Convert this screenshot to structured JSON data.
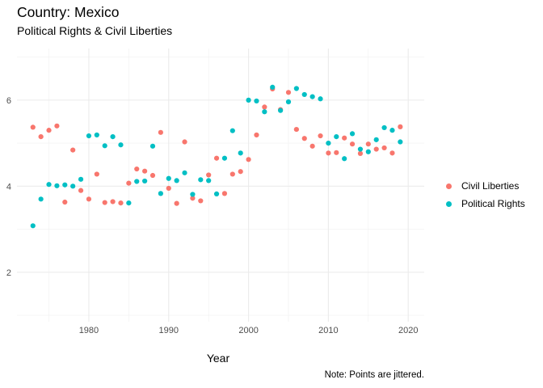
{
  "header": {
    "title": "Country: Mexico",
    "subtitle": "Political Rights & Civil Liberties",
    "caption": "Note: Points are jittered."
  },
  "legend": {
    "items": [
      {
        "label": "Civil Liberties",
        "color": "#F8766D"
      },
      {
        "label": "Political Rights",
        "color": "#00BFC4"
      }
    ]
  },
  "chart_data": {
    "type": "scatter",
    "xlabel": "Year",
    "ylabel": "",
    "xlim": [
      1971,
      2022
    ],
    "ylim": [
      0.85,
      7.2
    ],
    "x_ticks": [
      1980,
      1990,
      2000,
      2010,
      2020
    ],
    "y_ticks": [
      2,
      4,
      6
    ],
    "grid": true,
    "legend_position": "right",
    "series": [
      {
        "name": "Civil Liberties",
        "color": "#F8766D",
        "points": [
          [
            1973,
            5.37
          ],
          [
            1974,
            5.15
          ],
          [
            1975,
            5.3
          ],
          [
            1976,
            5.4
          ],
          [
            1977,
            3.63
          ],
          [
            1978,
            4.84
          ],
          [
            1979,
            3.9
          ],
          [
            1980,
            3.7
          ],
          [
            1981,
            4.28
          ],
          [
            1982,
            3.62
          ],
          [
            1983,
            3.64
          ],
          [
            1984,
            3.61
          ],
          [
            1985,
            4.07
          ],
          [
            1986,
            4.4
          ],
          [
            1987,
            4.35
          ],
          [
            1988,
            4.25
          ],
          [
            1989,
            5.25
          ],
          [
            1990,
            3.95
          ],
          [
            1991,
            3.6
          ],
          [
            1992,
            5.03
          ],
          [
            1993,
            3.72
          ],
          [
            1994,
            3.66
          ],
          [
            1995,
            4.26
          ],
          [
            1996,
            4.65
          ],
          [
            1997,
            3.83
          ],
          [
            1998,
            4.28
          ],
          [
            1999,
            4.34
          ],
          [
            2000,
            4.62
          ],
          [
            2001,
            5.19
          ],
          [
            2002,
            5.84
          ],
          [
            2003,
            6.26
          ],
          [
            2004,
            5.78
          ],
          [
            2005,
            6.18
          ],
          [
            2006,
            5.32
          ],
          [
            2007,
            5.11
          ],
          [
            2008,
            4.93
          ],
          [
            2009,
            5.17
          ],
          [
            2010,
            4.77
          ],
          [
            2011,
            4.78
          ],
          [
            2012,
            5.12
          ],
          [
            2013,
            4.98
          ],
          [
            2014,
            4.76
          ],
          [
            2015,
            4.98
          ],
          [
            2016,
            4.86
          ],
          [
            2017,
            4.89
          ],
          [
            2018,
            4.77
          ],
          [
            2019,
            5.38
          ]
        ]
      },
      {
        "name": "Political Rights",
        "color": "#00BFC4",
        "points": [
          [
            1973,
            3.08
          ],
          [
            1974,
            3.7
          ],
          [
            1975,
            4.04
          ],
          [
            1976,
            4.01
          ],
          [
            1977,
            4.03
          ],
          [
            1978,
            4.0
          ],
          [
            1979,
            4.16
          ],
          [
            1980,
            5.17
          ],
          [
            1981,
            5.19
          ],
          [
            1982,
            4.94
          ],
          [
            1983,
            5.15
          ],
          [
            1984,
            4.96
          ],
          [
            1985,
            3.61
          ],
          [
            1986,
            4.11
          ],
          [
            1987,
            4.12
          ],
          [
            1988,
            4.93
          ],
          [
            1989,
            3.83
          ],
          [
            1990,
            4.18
          ],
          [
            1991,
            4.13
          ],
          [
            1992,
            4.31
          ],
          [
            1993,
            3.81
          ],
          [
            1994,
            4.15
          ],
          [
            1995,
            4.13
          ],
          [
            1996,
            3.82
          ],
          [
            1997,
            4.65
          ],
          [
            1998,
            5.29
          ],
          [
            1999,
            4.77
          ],
          [
            2000,
            6.0
          ],
          [
            2001,
            5.98
          ],
          [
            2002,
            5.73
          ],
          [
            2003,
            6.3
          ],
          [
            2004,
            5.76
          ],
          [
            2005,
            5.96
          ],
          [
            2006,
            6.27
          ],
          [
            2007,
            6.13
          ],
          [
            2008,
            6.08
          ],
          [
            2009,
            6.03
          ],
          [
            2010,
            5.0
          ],
          [
            2011,
            5.15
          ],
          [
            2012,
            4.64
          ],
          [
            2013,
            5.22
          ],
          [
            2014,
            4.86
          ],
          [
            2015,
            4.8
          ],
          [
            2016,
            5.08
          ],
          [
            2017,
            5.36
          ],
          [
            2018,
            5.3
          ],
          [
            2019,
            5.03
          ]
        ]
      }
    ]
  }
}
